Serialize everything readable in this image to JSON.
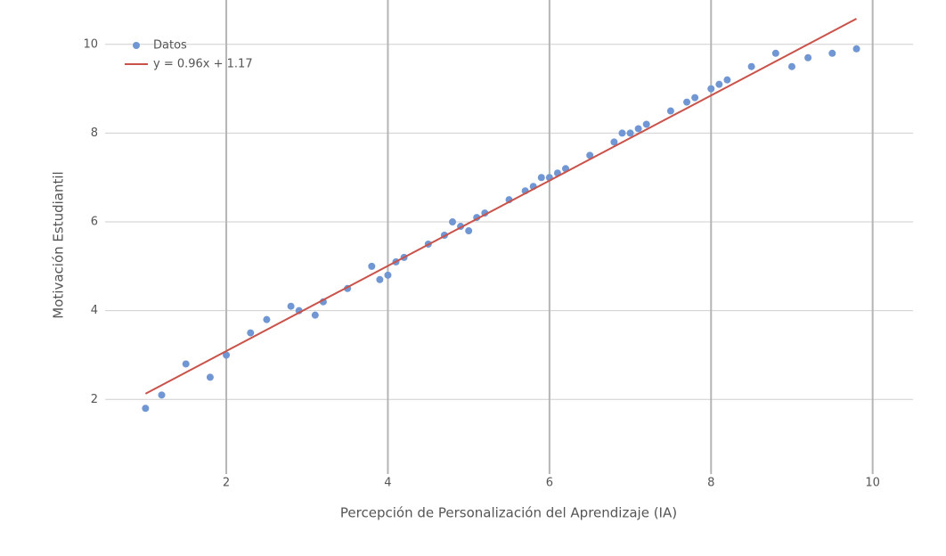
{
  "chart_data": {
    "type": "scatter",
    "x_label": "Percepción de Personalización del Aprendizaje (IA)",
    "y_label": "Motivación Estudiantil",
    "xlim": [
      0.5,
      10.5
    ],
    "ylim": [
      0.4,
      11
    ],
    "xticks": [
      2,
      4,
      6,
      8,
      10
    ],
    "yticks": [
      2,
      4,
      6,
      8,
      10
    ],
    "grid": true,
    "legend": "upper left",
    "series": [
      {
        "name": "Datos",
        "color": "#7096d3",
        "x": [
          1.0,
          1.2,
          1.5,
          1.8,
          2.0,
          2.3,
          2.5,
          2.8,
          2.9,
          3.1,
          3.2,
          3.5,
          3.8,
          3.9,
          4.0,
          4.1,
          4.2,
          4.5,
          4.7,
          4.8,
          4.9,
          5.0,
          5.1,
          5.2,
          5.5,
          5.7,
          5.8,
          5.9,
          6.0,
          6.1,
          6.2,
          6.5,
          6.8,
          6.9,
          7.0,
          7.1,
          7.2,
          7.5,
          7.7,
          7.8,
          8.0,
          8.1,
          8.2,
          8.5,
          8.8,
          9.0,
          9.2,
          9.5,
          9.8
        ],
        "values": [
          1.8,
          2.1,
          2.8,
          2.5,
          3.0,
          3.5,
          3.8,
          4.1,
          4.0,
          3.9,
          4.2,
          4.5,
          5.0,
          4.7,
          4.8,
          5.1,
          5.2,
          5.5,
          5.7,
          6.0,
          5.9,
          5.8,
          6.1,
          6.2,
          6.5,
          6.7,
          6.8,
          7.0,
          7.0,
          7.1,
          7.2,
          7.5,
          7.8,
          8.0,
          8.0,
          8.1,
          8.2,
          8.5,
          8.7,
          8.8,
          9.0,
          9.1,
          9.2,
          9.5,
          9.8,
          9.5,
          9.7,
          9.8,
          9.9
        ]
      },
      {
        "name": "y = 0.96x + 1.17",
        "type": "line",
        "color": "#c9524a",
        "slope": 0.96,
        "intercept": 1.17
      }
    ]
  }
}
